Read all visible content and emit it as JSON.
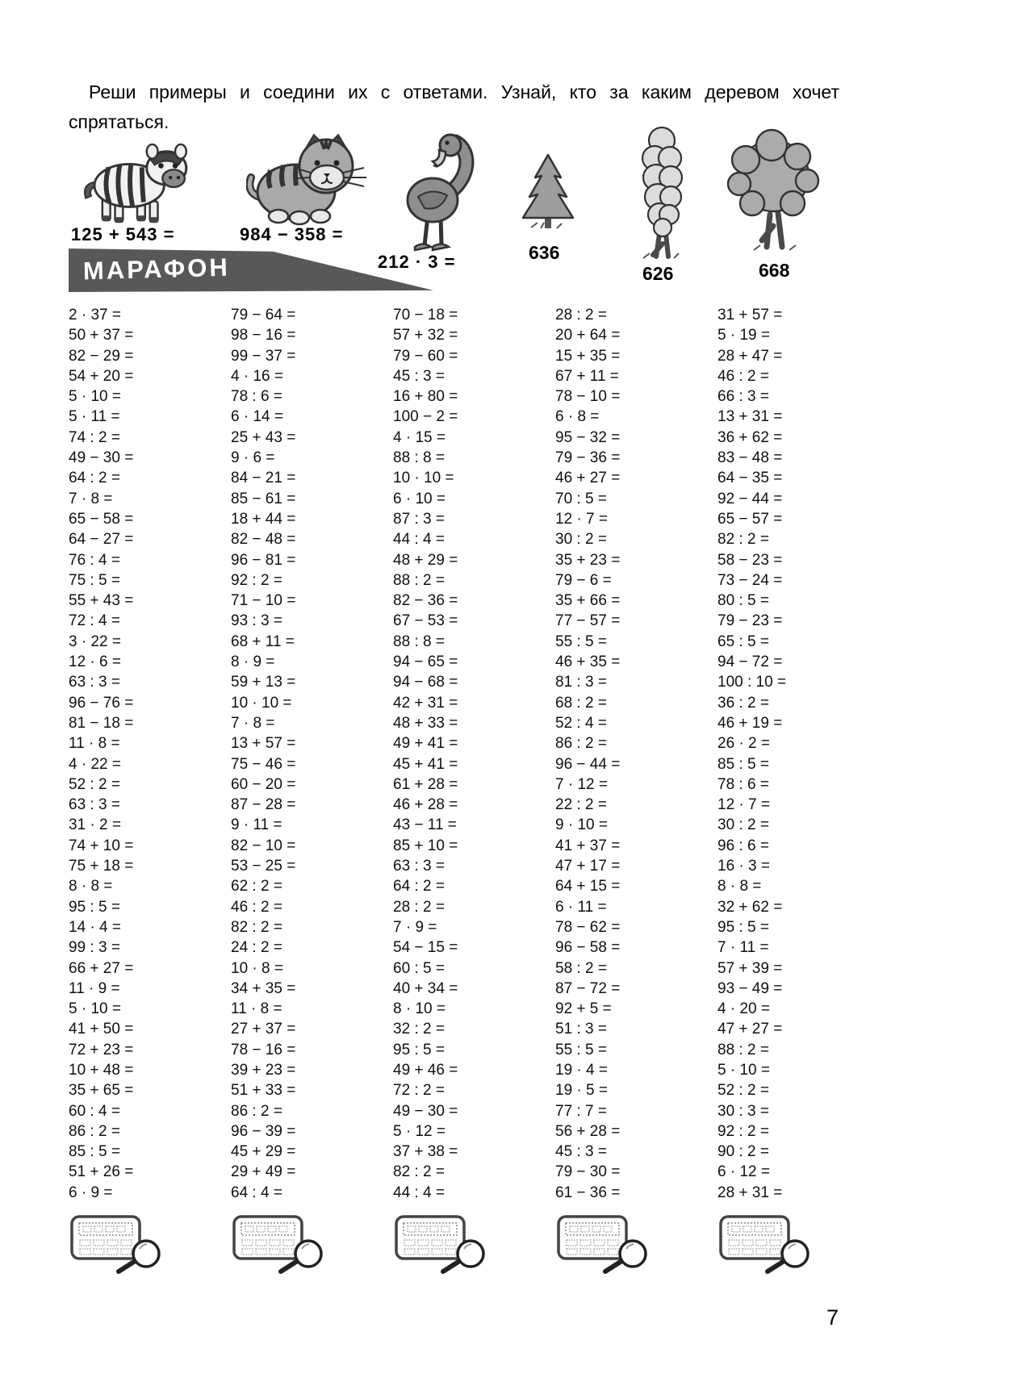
{
  "instruction": "Реши примеры и соедини их с ответами. Узнай, кто за каким деревом хочет спрятаться.",
  "banner": {
    "label": "МАРАФОН"
  },
  "colors": {
    "banner": "#58585a",
    "ink": "#1a1a1a"
  },
  "icons": {
    "figures": [
      "zebra-figure",
      "tiger-cub-figure",
      "flamingo-figure",
      "fir-tree-figure",
      "poplar-tree-figure",
      "oak-tree-figure"
    ],
    "footer": "calculator-magnifier-icon"
  },
  "matching": {
    "equations": [
      {
        "figure": "zebra",
        "text": "125 + 543 ="
      },
      {
        "figure": "tiger-cub",
        "text": "984 − 358 ="
      },
      {
        "figure": "flamingo",
        "text": "212 · 3 ="
      }
    ],
    "answers": [
      {
        "figure": "fir-tree",
        "text": "636"
      },
      {
        "figure": "poplar-tree",
        "text": "626"
      },
      {
        "figure": "oak-tree",
        "text": "668"
      }
    ]
  },
  "columns": [
    {
      "problems": [
        "2 · 37 =",
        "50 + 37 =",
        "82 − 29 =",
        "54 + 20 =",
        "5 · 10 =",
        "5 · 11 =",
        "74 : 2 =",
        "49 − 30 =",
        "64 : 2 =",
        "7 · 8 =",
        "65 − 58 =",
        "64 − 27 =",
        "76 : 4 =",
        "75 : 5 =",
        "55 + 43 =",
        "72 : 4 =",
        "3 · 22 =",
        "12 · 6 =",
        "63 : 3 =",
        "96 − 76 =",
        "81 − 18 =",
        "11 · 8 =",
        "4 · 22 =",
        "52 : 2 =",
        "63 : 3 =",
        "31 · 2 =",
        "74 + 10 =",
        "75 + 18 =",
        "8 · 8 =",
        "95 : 5 =",
        "14 · 4 =",
        "99 : 3 =",
        "66 + 27 =",
        "11 · 9 =",
        "5 · 10 =",
        "41 + 50 =",
        "72 + 23 =",
        "10 + 48 =",
        "35 + 65 =",
        "60 : 4 =",
        "86 : 2 =",
        "85 : 5 =",
        "51 + 26 =",
        "6 · 9 ="
      ]
    },
    {
      "problems": [
        "79 − 64 =",
        "98 − 16 =",
        "99 − 37 =",
        "4 · 16 =",
        "78 : 6 =",
        "6 · 14 =",
        "25 + 43 =",
        "9 · 6 =",
        "84 − 21 =",
        "85 − 61 =",
        "18 + 44 =",
        "82 − 48 =",
        "96 − 81 =",
        "92 : 2 =",
        "71 − 10 =",
        "93 : 3 =",
        "68 + 11 =",
        "8 · 9 =",
        "59 + 13 =",
        "10 · 10 =",
        "7 · 8 =",
        "13 + 57 =",
        "75 − 46 =",
        "60 − 20 =",
        "87 − 28 =",
        "9 · 11 =",
        "82 − 10 =",
        "53 − 25 =",
        "62 : 2 =",
        "46 : 2 =",
        "82 : 2 =",
        "24 : 2 =",
        "10 · 8 =",
        "34 + 35 =",
        "11 · 8 =",
        "27 + 37 =",
        "78 − 16 =",
        "39 + 23 =",
        "51 + 33 =",
        "86 : 2 =",
        "96 − 39 =",
        "45 + 29 =",
        "29 + 49 =",
        "64 : 4 ="
      ]
    },
    {
      "problems": [
        "70 − 18 =",
        "57 + 32 =",
        "79 − 60 =",
        "45 : 3 =",
        "16 + 80 =",
        "100 − 2 =",
        "4 · 15 =",
        "88 : 8 =",
        "10 · 10 =",
        "6 · 10 =",
        "87 : 3 =",
        "44 : 4 =",
        "48 + 29 =",
        "88 : 2 =",
        "82 − 36 =",
        "67 − 53 =",
        "88 : 8 =",
        "94 − 65 =",
        "94 − 68 =",
        "42 + 31 =",
        "48 + 33 =",
        "49 + 41 =",
        "45 + 41 =",
        "61 + 28 =",
        "46 + 28 =",
        "43 − 11 =",
        "85 + 10 =",
        "63 : 3 =",
        "64 : 2 =",
        "28 : 2 =",
        "7 · 9 =",
        "54 − 15 =",
        "60 : 5 =",
        "40 + 34 =",
        "8 · 10 =",
        "32 : 2 =",
        "95 : 5 =",
        "49 + 46 =",
        "72 : 2 =",
        "49 − 30 =",
        "5 · 12 =",
        "37 + 38 =",
        "82 : 2 =",
        "44 : 4 ="
      ]
    },
    {
      "problems": [
        "28 : 2 =",
        "20 + 64 =",
        "15 + 35 =",
        "67 + 11 =",
        "78 − 10 =",
        "6 · 8 =",
        "95 − 32 =",
        "79 − 36 =",
        "46 + 27 =",
        "70 : 5 =",
        "12 · 7 =",
        "30 : 2 =",
        "35 + 23 =",
        "79 − 6 =",
        "35 + 66 =",
        "77 − 57 =",
        "55 : 5 =",
        "46 + 35 =",
        "81 : 3 =",
        "68 : 2 =",
        "52 : 4 =",
        "86 : 2 =",
        "96 − 44 =",
        "7 · 12 =",
        "22 : 2 =",
        "9 · 10 =",
        "41 + 37 =",
        "47 + 17 =",
        "64 + 15 =",
        "6 · 11 =",
        "78 − 62 =",
        "96 − 58 =",
        "58 : 2 =",
        "87 − 72 =",
        "92 + 5 =",
        "51 : 3 =",
        "55 : 5 =",
        "19 · 4 =",
        "19 · 5 =",
        "77 : 7 =",
        "56 + 28 =",
        "45 : 3 =",
        "79 − 30 =",
        "61 − 36 ="
      ]
    },
    {
      "problems": [
        "31 + 57 =",
        "5 · 19 =",
        "28 + 47 =",
        "46 : 2 =",
        "66 : 3 =",
        "13 + 31 =",
        "36 + 62 =",
        "83 − 48 =",
        "64 − 35 =",
        "92 − 44 =",
        "65 − 57 =",
        "82 : 2 =",
        "58 − 23 =",
        "73 − 24 =",
        "80 : 5 =",
        "79 − 23 =",
        "65 : 5 =",
        "94 − 72 =",
        "100 : 10 =",
        "36 : 2 =",
        "46 + 19 =",
        "26 · 2 =",
        "85 : 5 =",
        "78 : 6 =",
        "12 · 7 =",
        "30 : 2 =",
        "96 : 6 =",
        "16 · 3 =",
        "8 · 8 =",
        "32 + 62 =",
        "95 : 5 =",
        "7 · 11 =",
        "57 + 39 =",
        "93 − 49 =",
        "4 · 20 =",
        "47 + 27 =",
        "88 : 2 =",
        "5 · 10 =",
        "52 : 2 =",
        "30 : 3 =",
        "92 : 2 =",
        "90 : 2 =",
        "6 · 12 =",
        "28 + 31 ="
      ]
    }
  ],
  "page": {
    "number": "7"
  }
}
